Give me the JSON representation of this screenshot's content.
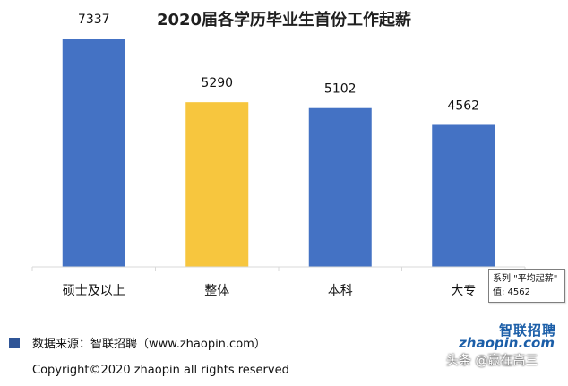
{
  "chart_data": {
    "type": "bar",
    "title": "2020届各学历毕业生首份工作起薪",
    "categories": [
      "硕士及以上",
      "整体",
      "本科",
      "大专"
    ],
    "series": [
      {
        "name": "平均起薪",
        "values": [
          7337,
          5290,
          5102,
          4562
        ]
      }
    ],
    "data_labels": [
      "7337",
      "5290",
      "5102",
      "4562"
    ],
    "highlight_category": "整体",
    "colors": {
      "default_bar": "#4472c4",
      "highlight_bar": "#f7c63e",
      "axis": "#d9d9d9",
      "legend_marker": "#2f5597"
    },
    "ylim": [
      0,
      8000
    ],
    "grid": false,
    "legend_placement": "bottom-left"
  },
  "footer": {
    "legend_text": "数据来源：智联招聘（www.zhaopin.com）",
    "copyright": "Copyright©2020 zhaopin all rights reserved"
  },
  "tooltip": {
    "series_line": "系列 \"平均起薪\"",
    "value_line": "值: 4562"
  },
  "logo": {
    "top": "智联招聘",
    "bottom": "zhaopin.com"
  },
  "watermark": {
    "text": "头条 @赢在高三"
  }
}
